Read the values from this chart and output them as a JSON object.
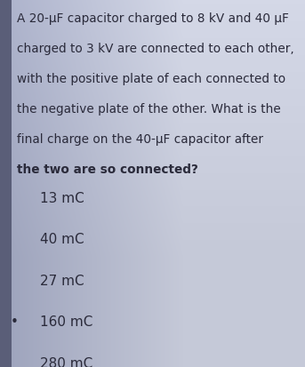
{
  "question_text_lines": [
    "A 20-μF capacitor charged to 8 kV and 40 μF",
    "charged to 3 kV are connected to each other,",
    "with the positive plate of each connected to",
    "the negative plate of the other. What is the",
    "final charge on the 40-μF capacitor after",
    "the two are so connected?"
  ],
  "options": [
    {
      "label": "13 mC",
      "bullet": false
    },
    {
      "label": "40 mC",
      "bullet": false
    },
    {
      "label": "27 mC",
      "bullet": false
    },
    {
      "label": "160 mC",
      "bullet": true
    },
    {
      "label": "280 mC",
      "bullet": false
    }
  ],
  "bg_color": "#9da3bc",
  "bg_color_light": "#c5c9d8",
  "text_color": "#2a2a3a",
  "option_color": "#2a2a3a",
  "bullet_color": "#2a2a3a",
  "left_strip_color": "#5a5e78",
  "font_size_question": 9.8,
  "font_size_options": 11.0,
  "selected_bullet": "•"
}
